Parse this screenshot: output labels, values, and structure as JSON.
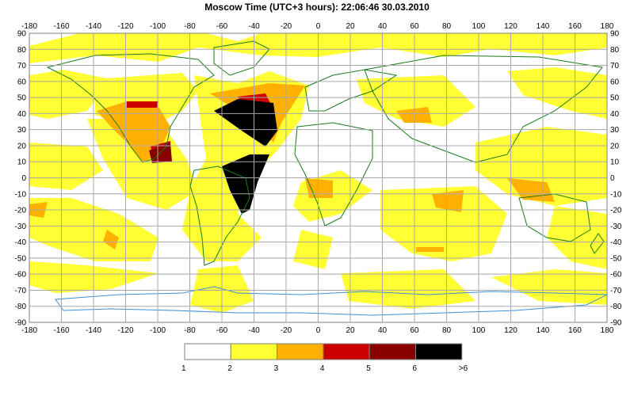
{
  "title": "Moscow Time (UTC+3 hours): 22:06:46   30.03.2010",
  "map": {
    "x_ticks": [
      "-180",
      "-160",
      "-140",
      "-120",
      "-100",
      "-80",
      "-60",
      "-40",
      "-20",
      "0",
      "20",
      "40",
      "60",
      "80",
      "100",
      "120",
      "140",
      "160",
      "180"
    ],
    "y_ticks": [
      "90",
      "80",
      "70",
      "60",
      "50",
      "40",
      "30",
      "20",
      "10",
      "0",
      "-10",
      "-20",
      "-30",
      "-40",
      "-50",
      "-60",
      "-70",
      "-80",
      "-90"
    ],
    "xlim": [
      -180,
      180
    ],
    "ylim": [
      -90,
      90
    ],
    "grid": true,
    "colors": {
      "coast": "#1a7a1a",
      "antarctic": "#3a8fd8",
      "grid": "#a8a8a8"
    }
  },
  "legend": {
    "boxes": [
      {
        "color": "#ffffff"
      },
      {
        "color": "#ffff33"
      },
      {
        "color": "#ffb000"
      },
      {
        "color": "#cc0000"
      },
      {
        "color": "#880000"
      },
      {
        "color": "#000000"
      }
    ],
    "labels": [
      "1",
      "2",
      "3",
      "4",
      "5",
      "6",
      ">6"
    ]
  }
}
